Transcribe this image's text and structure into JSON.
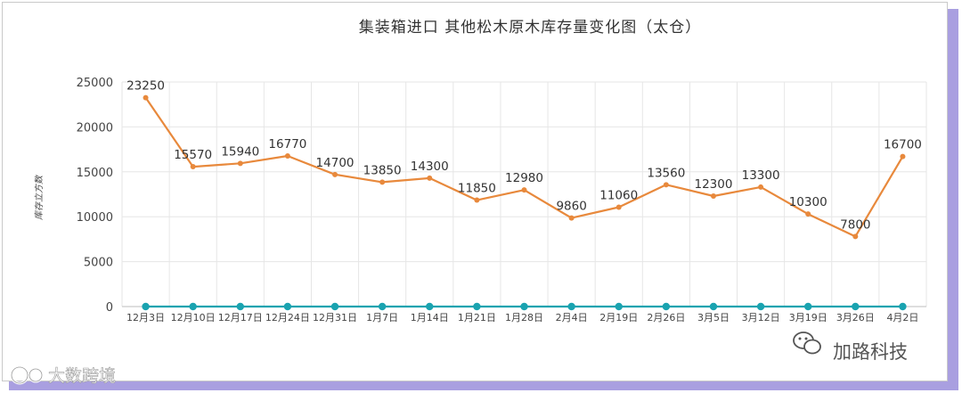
{
  "chart_data": {
    "type": "line",
    "title": "集装箱进口 其他松木原木库存量变化图（太仓）",
    "ylabel": "库存立方数",
    "xlabel": "",
    "ylim": [
      0,
      25000
    ],
    "yticks": [
      0,
      5000,
      10000,
      15000,
      20000,
      25000
    ],
    "grid": true,
    "categories": [
      "12月3日",
      "12月10日",
      "12月17日",
      "12月24日",
      "12月31日",
      "1月7日",
      "1月14日",
      "1月21日",
      "1月28日",
      "2月4日",
      "2月19日",
      "2月26日",
      "3月5日",
      "3月12日",
      "3月19日",
      "3月26日",
      "4月2日"
    ],
    "series": [
      {
        "color": "#e8893c",
        "values": [
          23250,
          15570,
          15940,
          16770,
          14700,
          13850,
          14300,
          11850,
          12980,
          9860,
          11060,
          13560,
          12300,
          13300,
          10300,
          7800,
          16700
        ],
        "show_labels": true
      },
      {
        "color": "#1aa3b0",
        "values": [
          0,
          0,
          0,
          0,
          0,
          0,
          0,
          0,
          0,
          0,
          0,
          0,
          0,
          0,
          0,
          0,
          0
        ],
        "show_labels": false
      }
    ]
  },
  "watermarks": {
    "right_text": "加路科技",
    "left_text": "大数跨境"
  }
}
